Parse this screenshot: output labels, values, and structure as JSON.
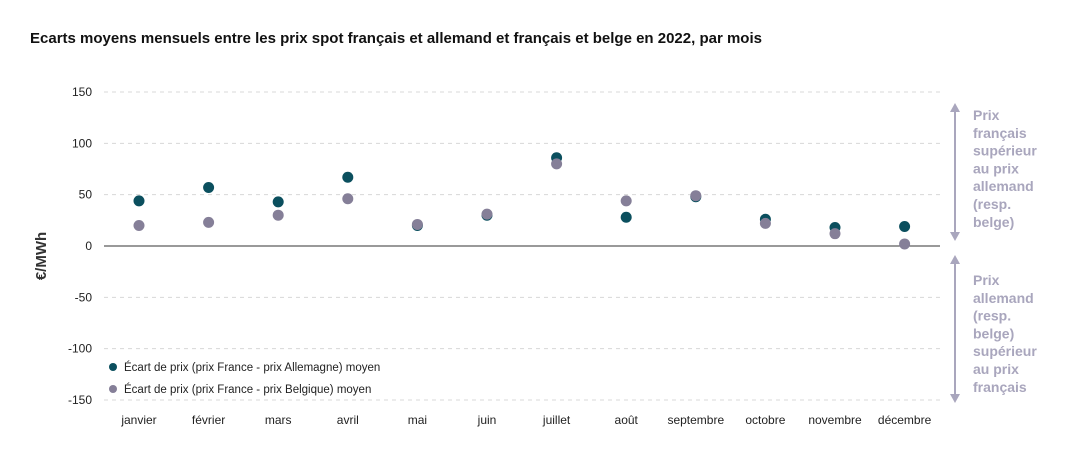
{
  "title": "Ecarts moyens mensuels entre les prix spot français et allemand et français et belge en 2022, par mois",
  "chart_data": {
    "type": "scatter",
    "title": "Ecarts moyens mensuels entre les prix spot français et allemand et français et belge en 2022, par mois",
    "ylabel": "€/MWh",
    "xlabel": "",
    "ylim": [
      -150,
      150
    ],
    "yticks": [
      150,
      100,
      50,
      0,
      -50,
      -100,
      -150
    ],
    "ytick_labels": [
      "150",
      "100",
      "50",
      "0",
      "-50",
      "-100",
      "-150"
    ],
    "grid": "horizontal dashed",
    "legend_position": "bottom-left",
    "categories": [
      "janvier",
      "février",
      "mars",
      "avril",
      "mai",
      "juin",
      "juillet",
      "août",
      "septembre",
      "octobre",
      "novembre",
      "décembre"
    ],
    "series": [
      {
        "name": "Écart de prix (prix France - prix Allemagne) moyen",
        "color": "#0b4f5e",
        "values": [
          44,
          57,
          43,
          67,
          20,
          30,
          86,
          28,
          48,
          26,
          18,
          19
        ]
      },
      {
        "name": "Écart de prix (prix France - prix Belgique) moyen",
        "color": "#857f98",
        "values": [
          20,
          23,
          30,
          46,
          21,
          31,
          80,
          44,
          49,
          22,
          12,
          2
        ]
      }
    ],
    "annotations": {
      "upper_lines": [
        "Prix",
        "français",
        "supérieur",
        "au prix",
        "allemand",
        "(resp.",
        "belge)"
      ],
      "lower_lines": [
        "Prix",
        "allemand",
        "(resp.",
        "belge)",
        "supérieur",
        "au prix",
        "français"
      ],
      "arrow_color": "#a9a6bd"
    }
  }
}
